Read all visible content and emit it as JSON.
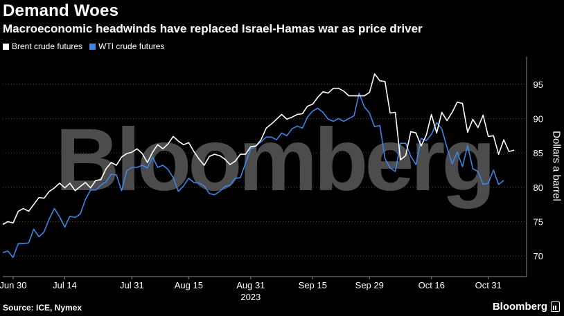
{
  "header": {
    "title": "Demand Woes",
    "subtitle": "Macroeconomic headwinds have replaced Israel-Hamas war as price driver"
  },
  "footer": {
    "source": "Source: ICE, Nymex",
    "brand": "Bloomberg"
  },
  "watermark": "Bloomberg",
  "colors": {
    "background": "#000000",
    "brent": "#ffffff",
    "wti": "#3d86e6",
    "grid": "#4a4a4a"
  },
  "chart_data": {
    "type": "line",
    "ylabel": "Dollars a barrel",
    "ylim": [
      67,
      99
    ],
    "yticks": [
      70,
      75,
      80,
      85,
      90,
      95
    ],
    "xticks": [
      "Jun 30",
      "Jul 14",
      "Jul 31",
      "Aug 15",
      "Aug 31",
      "Sep 15",
      "Sep 29",
      "Oct 16",
      "Oct 31"
    ],
    "year_label": "2023",
    "grid": "horizontal dotted",
    "legend": "top-left",
    "series": [
      {
        "name": "Brent crude futures",
        "color": "#ffffff",
        "values": [
          74.6,
          75.0,
          74.8,
          76.5,
          76.9,
          76.5,
          77.5,
          78.5,
          78.4,
          79.4,
          79.9,
          80.6,
          79.9,
          80.6,
          79.5,
          80.1,
          80.7,
          79.9,
          81.0,
          81.1,
          82.7,
          83.6,
          83.2,
          84.4,
          84.9,
          85.1,
          85.6,
          84.9,
          83.6,
          85.1,
          86.2,
          85.6,
          86.3,
          87.4,
          86.7,
          86.2,
          86.5,
          85.2,
          84.1,
          83.2,
          84.5,
          84.8,
          84.6,
          84.1,
          83.3,
          83.8,
          84.8,
          84.8,
          85.9,
          86.0,
          86.9,
          88.6,
          89.2,
          89.9,
          90.6,
          89.9,
          90.2,
          90.6,
          90.7,
          91.8,
          92.1,
          93.1,
          93.9,
          93.7,
          94.4,
          94.4,
          94.0,
          93.3,
          93.3,
          93.3,
          93.3,
          93.8,
          96.5,
          95.5,
          95.4,
          90.8,
          90.9,
          84.0,
          84.6,
          88.1,
          87.9,
          86.0,
          87.6,
          90.6,
          87.9,
          90.9,
          89.7,
          90.9,
          92.4,
          92.2,
          88.0,
          89.9,
          88.7,
          90.5,
          87.4,
          87.5,
          84.8,
          86.9,
          85.2,
          85.4
        ]
      },
      {
        "name": "WTI crude futures",
        "color": "#3d86e6",
        "values": [
          70.5,
          70.7,
          69.8,
          71.8,
          71.8,
          71.9,
          73.9,
          72.8,
          73.5,
          75.4,
          76.9,
          75.7,
          74.2,
          75.8,
          75.6,
          76.1,
          78.2,
          79.6,
          79.6,
          80.3,
          80.8,
          81.9,
          81.8,
          79.5,
          82.4,
          82.9,
          82.9,
          83.2,
          82.8,
          84.4,
          82.9,
          83.2,
          82.6,
          81.4,
          79.4,
          80.2,
          81.3,
          80.7,
          80.6,
          80.2,
          79.1,
          78.9,
          79.4,
          80.1,
          80.3,
          81.3,
          81.4,
          83.5,
          85.6,
          86.0,
          86.6,
          87.3,
          87.3,
          86.9,
          87.9,
          87.5,
          88.5,
          88.9,
          88.6,
          90.2,
          91.1,
          91.5,
          90.9,
          89.9,
          89.6,
          90.0,
          89.6,
          90.0,
          90.4,
          93.7,
          91.7,
          90.8,
          88.8,
          89.0,
          84.2,
          82.8,
          82.3,
          86.4,
          86.4,
          84.5,
          83.3,
          87.1,
          86.8,
          87.7,
          89.4,
          88.5,
          85.8,
          83.4,
          85.1,
          83.0,
          86.1,
          82.7,
          82.3,
          80.4,
          80.6,
          82.5,
          80.4,
          81.0
        ]
      }
    ]
  }
}
